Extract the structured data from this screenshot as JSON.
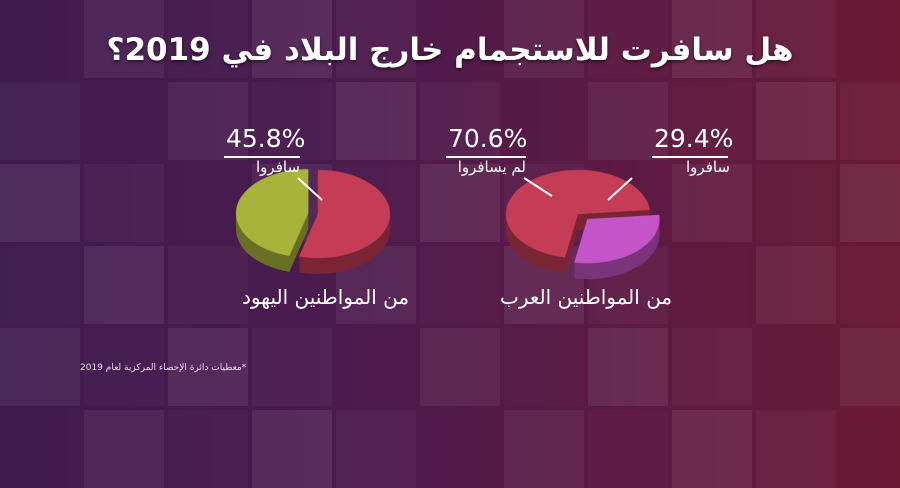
{
  "title": "هل سافرت للاستجمام خارج البلاد في 2019؟",
  "footnote": "*معطيات دائرة الإحصاء المركزية لعام 2019",
  "chart_data": [
    {
      "type": "pie",
      "group": "من المواطنين العرب",
      "slices": [
        {
          "label": "لم يسافروا",
          "value": 70.6,
          "display": "70.6%",
          "color": "#c43c55"
        },
        {
          "label": "سافروا",
          "value": 29.4,
          "display": "29.4%",
          "color": "#c454c8"
        }
      ]
    },
    {
      "type": "pie",
      "group": "من المواطنين اليهود",
      "slices": [
        {
          "label": "سافروا",
          "value": 45.8,
          "display": "45.8%",
          "color": "#a7b43a"
        }
      ],
      "remainder_color": "#c43c55"
    }
  ]
}
